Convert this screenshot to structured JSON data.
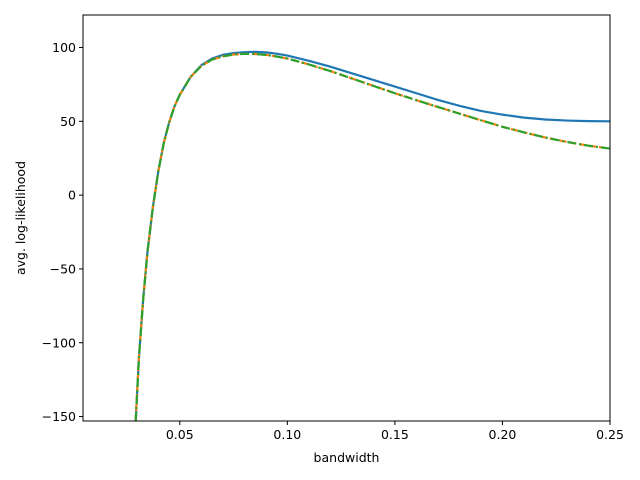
{
  "chart_data": {
    "type": "line",
    "title": "",
    "xlabel": "bandwidth",
    "ylabel": "avg. log-likelihood",
    "xlim": [
      0.005,
      0.25
    ],
    "ylim": [
      -153,
      122
    ],
    "grid": false,
    "xticks": [
      {
        "value": 0.05,
        "label": "0.05"
      },
      {
        "value": 0.1,
        "label": "0.10"
      },
      {
        "value": 0.15,
        "label": "0.15"
      },
      {
        "value": 0.2,
        "label": "0.20"
      },
      {
        "value": 0.25,
        "label": "0.25"
      }
    ],
    "yticks": [
      {
        "value": 100,
        "label": "100"
      },
      {
        "value": 50,
        "label": "50"
      },
      {
        "value": 0,
        "label": "0"
      },
      {
        "value": -50,
        "label": "−50"
      },
      {
        "value": -100,
        "label": "−100"
      },
      {
        "value": -150,
        "label": "−150"
      }
    ],
    "series": [
      {
        "color": "#1f77b4",
        "style": "solid",
        "x": [
          0.0295,
          0.031,
          0.033,
          0.035,
          0.0375,
          0.04,
          0.0425,
          0.045,
          0.0475,
          0.05,
          0.055,
          0.06,
          0.065,
          0.07,
          0.075,
          0.08,
          0.085,
          0.09,
          0.095,
          0.1,
          0.11,
          0.12,
          0.13,
          0.14,
          0.15,
          0.16,
          0.17,
          0.18,
          0.19,
          0.2,
          0.21,
          0.22,
          0.23,
          0.24,
          0.25
        ],
        "y": [
          -153,
          -110,
          -70,
          -38,
          -8,
          16,
          35,
          49,
          60,
          68,
          80,
          88,
          92.5,
          95,
          96.2,
          96.8,
          97,
          96.7,
          95.8,
          94.5,
          91,
          87,
          82.5,
          78,
          73.5,
          69,
          64.5,
          60.5,
          57,
          54.5,
          52.5,
          51.2,
          50.5,
          50.1,
          50
        ]
      },
      {
        "color": "#ff7f0e",
        "style": "dashed",
        "x": [
          0.0295,
          0.031,
          0.033,
          0.035,
          0.0375,
          0.04,
          0.0425,
          0.045,
          0.0475,
          0.05,
          0.055,
          0.06,
          0.065,
          0.07,
          0.075,
          0.08,
          0.085,
          0.09,
          0.095,
          0.1,
          0.11,
          0.12,
          0.13,
          0.14,
          0.15,
          0.16,
          0.17,
          0.18,
          0.19,
          0.2,
          0.21,
          0.22,
          0.23,
          0.24,
          0.25
        ],
        "y": [
          -153,
          -110,
          -70,
          -38,
          -8,
          16,
          35,
          49,
          60,
          68,
          80,
          87.5,
          91.8,
          94,
          95.2,
          95.7,
          95.6,
          95,
          93.9,
          92.5,
          88.5,
          84,
          79,
          74,
          69,
          64.3,
          59.7,
          55.2,
          50.7,
          46.3,
          42.5,
          39,
          36,
          33.5,
          31.5
        ]
      },
      {
        "color": "#2ca02c",
        "style": "dashdot",
        "x": [
          0.0295,
          0.031,
          0.033,
          0.035,
          0.0375,
          0.04,
          0.0425,
          0.045,
          0.0475,
          0.05,
          0.055,
          0.06,
          0.065,
          0.07,
          0.075,
          0.08,
          0.085,
          0.09,
          0.095,
          0.1,
          0.11,
          0.12,
          0.13,
          0.14,
          0.15,
          0.16,
          0.17,
          0.18,
          0.19,
          0.2,
          0.21,
          0.22,
          0.23,
          0.24,
          0.25
        ],
        "y": [
          -153,
          -110,
          -70,
          -38,
          -8,
          16,
          35,
          49,
          60,
          68,
          80,
          87.5,
          91.8,
          94,
          95.2,
          95.7,
          95.6,
          95,
          93.9,
          92.5,
          88.5,
          84,
          79,
          74,
          69,
          64.3,
          59.7,
          55.2,
          50.7,
          46.3,
          42.5,
          39,
          36,
          33.5,
          31.5
        ]
      }
    ]
  }
}
